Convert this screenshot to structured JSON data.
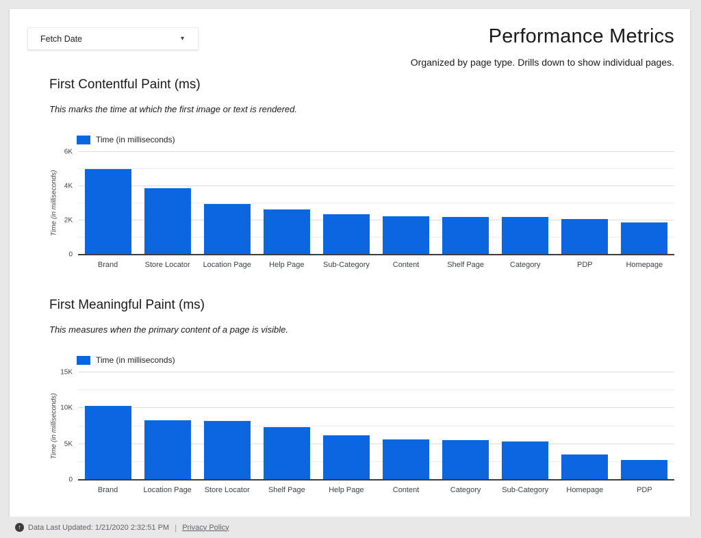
{
  "filter": {
    "label": "Fetch Date"
  },
  "header": {
    "title": "Performance Metrics",
    "subtitle": "Organized by page type. Drills down to show individual pages."
  },
  "icons": {
    "dropdown_caret": "▾",
    "footer_arrow": "↑"
  },
  "colors": {
    "bar_blue": "#0b66e0",
    "page_background": "#ffffff",
    "canvas_background": "#e8e8e8"
  },
  "chart_data": [
    {
      "type": "bar",
      "title": "First Contentful Paint (ms)",
      "subtitle": "This marks the time at which the first image or text is rendered.",
      "legend": "Time (in milliseconds)",
      "ylabel": "Time (in milliseconds)",
      "categories": [
        "Brand",
        "Store Locator",
        "Location Page",
        "Help Page",
        "Sub-Category",
        "Content",
        "Shelf Page",
        "Category",
        "PDP",
        "Homepage"
      ],
      "values": [
        5000,
        3900,
        2950,
        2650,
        2350,
        2250,
        2200,
        2200,
        2100,
        1900
      ],
      "ylim": [
        0,
        6000
      ],
      "major_ticks": [
        {
          "value": 0,
          "label": "0"
        },
        {
          "value": 2000,
          "label": "2K"
        },
        {
          "value": 4000,
          "label": "4K"
        },
        {
          "value": 6000,
          "label": "6K"
        }
      ],
      "minor_ticks": [
        1000,
        3000,
        5000
      ],
      "bar_color": "#0b66e0",
      "grid": true,
      "legend_position": "top-left"
    },
    {
      "type": "bar",
      "title": "First Meaningful Paint (ms)",
      "subtitle": "This measures when the primary content of a page is visible.",
      "legend": "Time (in milliseconds)",
      "ylabel": "Time (in milliseconds)",
      "categories": [
        "Brand",
        "Location Page",
        "Store Locator",
        "Shelf Page",
        "Help Page",
        "Content",
        "Category",
        "Sub-Category",
        "Homepage",
        "PDP"
      ],
      "values": [
        10300,
        8300,
        8200,
        7350,
        6250,
        5600,
        5500,
        5350,
        3500,
        2750
      ],
      "ylim": [
        0,
        15000
      ],
      "major_ticks": [
        {
          "value": 0,
          "label": "0"
        },
        {
          "value": 5000,
          "label": "5K"
        },
        {
          "value": 10000,
          "label": "10K"
        },
        {
          "value": 15000,
          "label": "15K"
        }
      ],
      "minor_ticks": [
        2500,
        7500,
        12500
      ],
      "bar_color": "#0b66e0",
      "grid": true,
      "legend_position": "top-left"
    }
  ],
  "footer": {
    "updated": "Data Last Updated: 1/21/2020 2:32:51 PM",
    "separator": "|",
    "privacy": "Privacy Policy"
  }
}
